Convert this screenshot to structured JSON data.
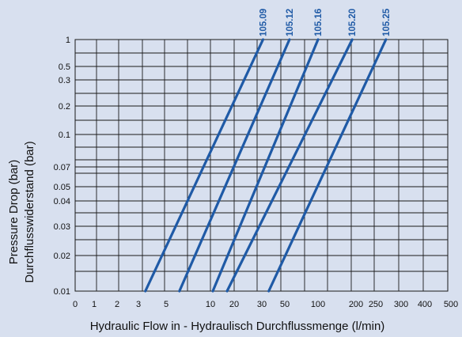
{
  "chart_data": {
    "type": "line",
    "title": "",
    "xlabel": "Hydraulic Flow in - Hydraulisch Durchflussmenge (l/min)",
    "ylabel": [
      "Pressure Drop (bar)",
      "Durchflusswiderstand (bar)"
    ],
    "x_ticks": [
      "0",
      "1",
      "2",
      "3",
      "5",
      "10",
      "20",
      "30",
      "50",
      "100",
      "200",
      "250",
      "300",
      "400",
      "500"
    ],
    "y_ticks": [
      "1",
      "0.5",
      "0.3",
      "0.2",
      "0.1",
      "0.07",
      "0.05",
      "0.04",
      "0.03",
      "0.02",
      "0.01"
    ],
    "y_scale": "log",
    "ylim": [
      0.01,
      1
    ],
    "grid": true,
    "series": [
      {
        "name": "105.09",
        "points": [
          [
            3.5,
            0.01
          ],
          [
            31,
            1
          ]
        ]
      },
      {
        "name": "105.12",
        "points": [
          [
            6.5,
            0.01
          ],
          [
            57,
            1
          ]
        ]
      },
      {
        "name": "105.16",
        "points": [
          [
            11,
            0.01
          ],
          [
            100,
            1
          ]
        ]
      },
      {
        "name": "105.20",
        "points": [
          [
            17,
            0.01
          ],
          [
            190,
            1
          ]
        ]
      },
      {
        "name": "105.25",
        "points": [
          [
            36,
            0.01
          ],
          [
            270,
            1
          ]
        ]
      }
    ],
    "colors": {
      "background": "#d8e0ef",
      "grid": "#1a1a1a",
      "series": "#1f5aa6",
      "text": "#111111"
    }
  }
}
